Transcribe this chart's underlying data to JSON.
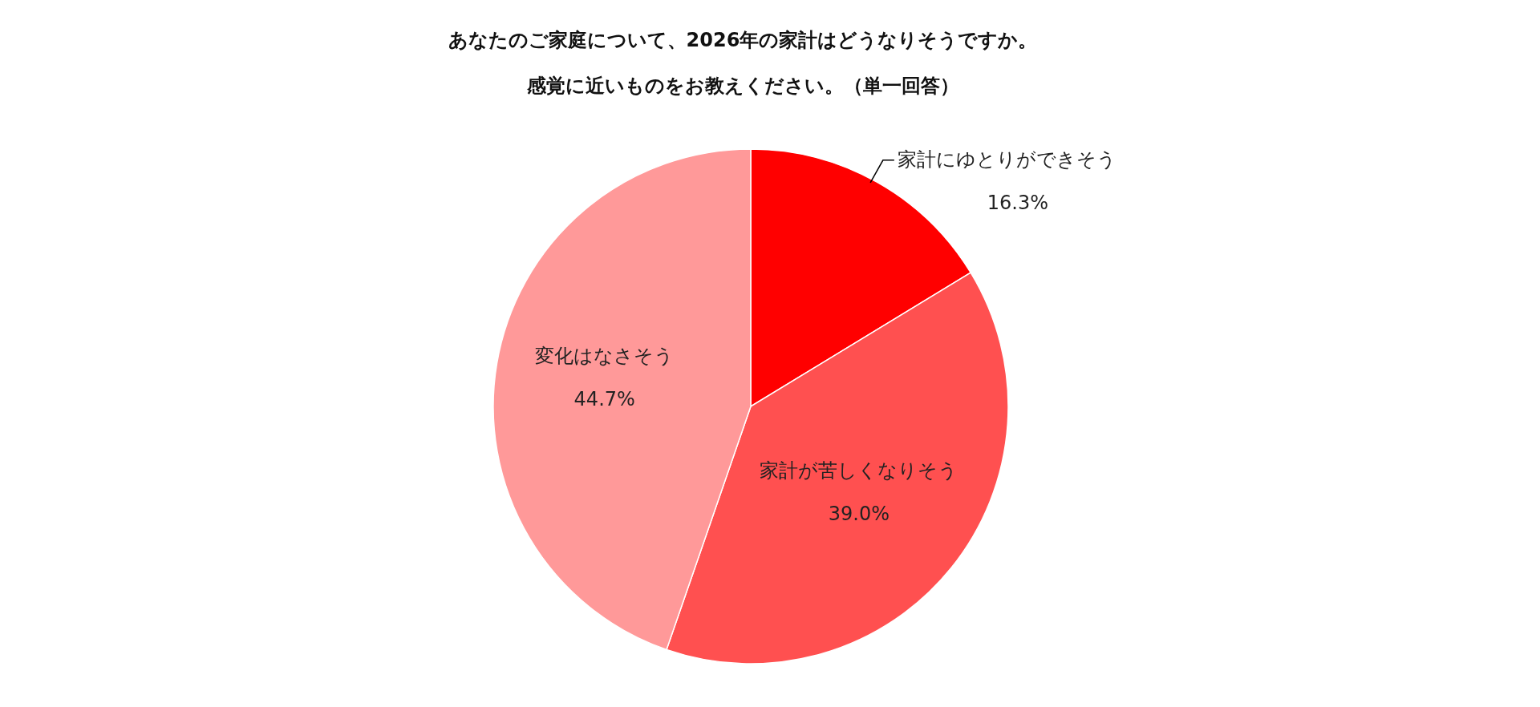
{
  "chart_data": {
    "type": "pie",
    "title": "あなたのご家庭について、2026年の家計はどうなりそうですか。",
    "subtitle": "感覚に近いものをお教えください。（単一回答）",
    "categories": [
      "家計にゆとりができそう",
      "家計が苦しくなりそう",
      "変化はなさそう"
    ],
    "values": [
      16.3,
      39.0,
      44.7
    ],
    "value_labels": [
      "16.3%",
      "39.0%",
      "44.7%"
    ],
    "colors": [
      "#ff0000",
      "#ff5050",
      "#ff9999"
    ],
    "legend": false
  }
}
